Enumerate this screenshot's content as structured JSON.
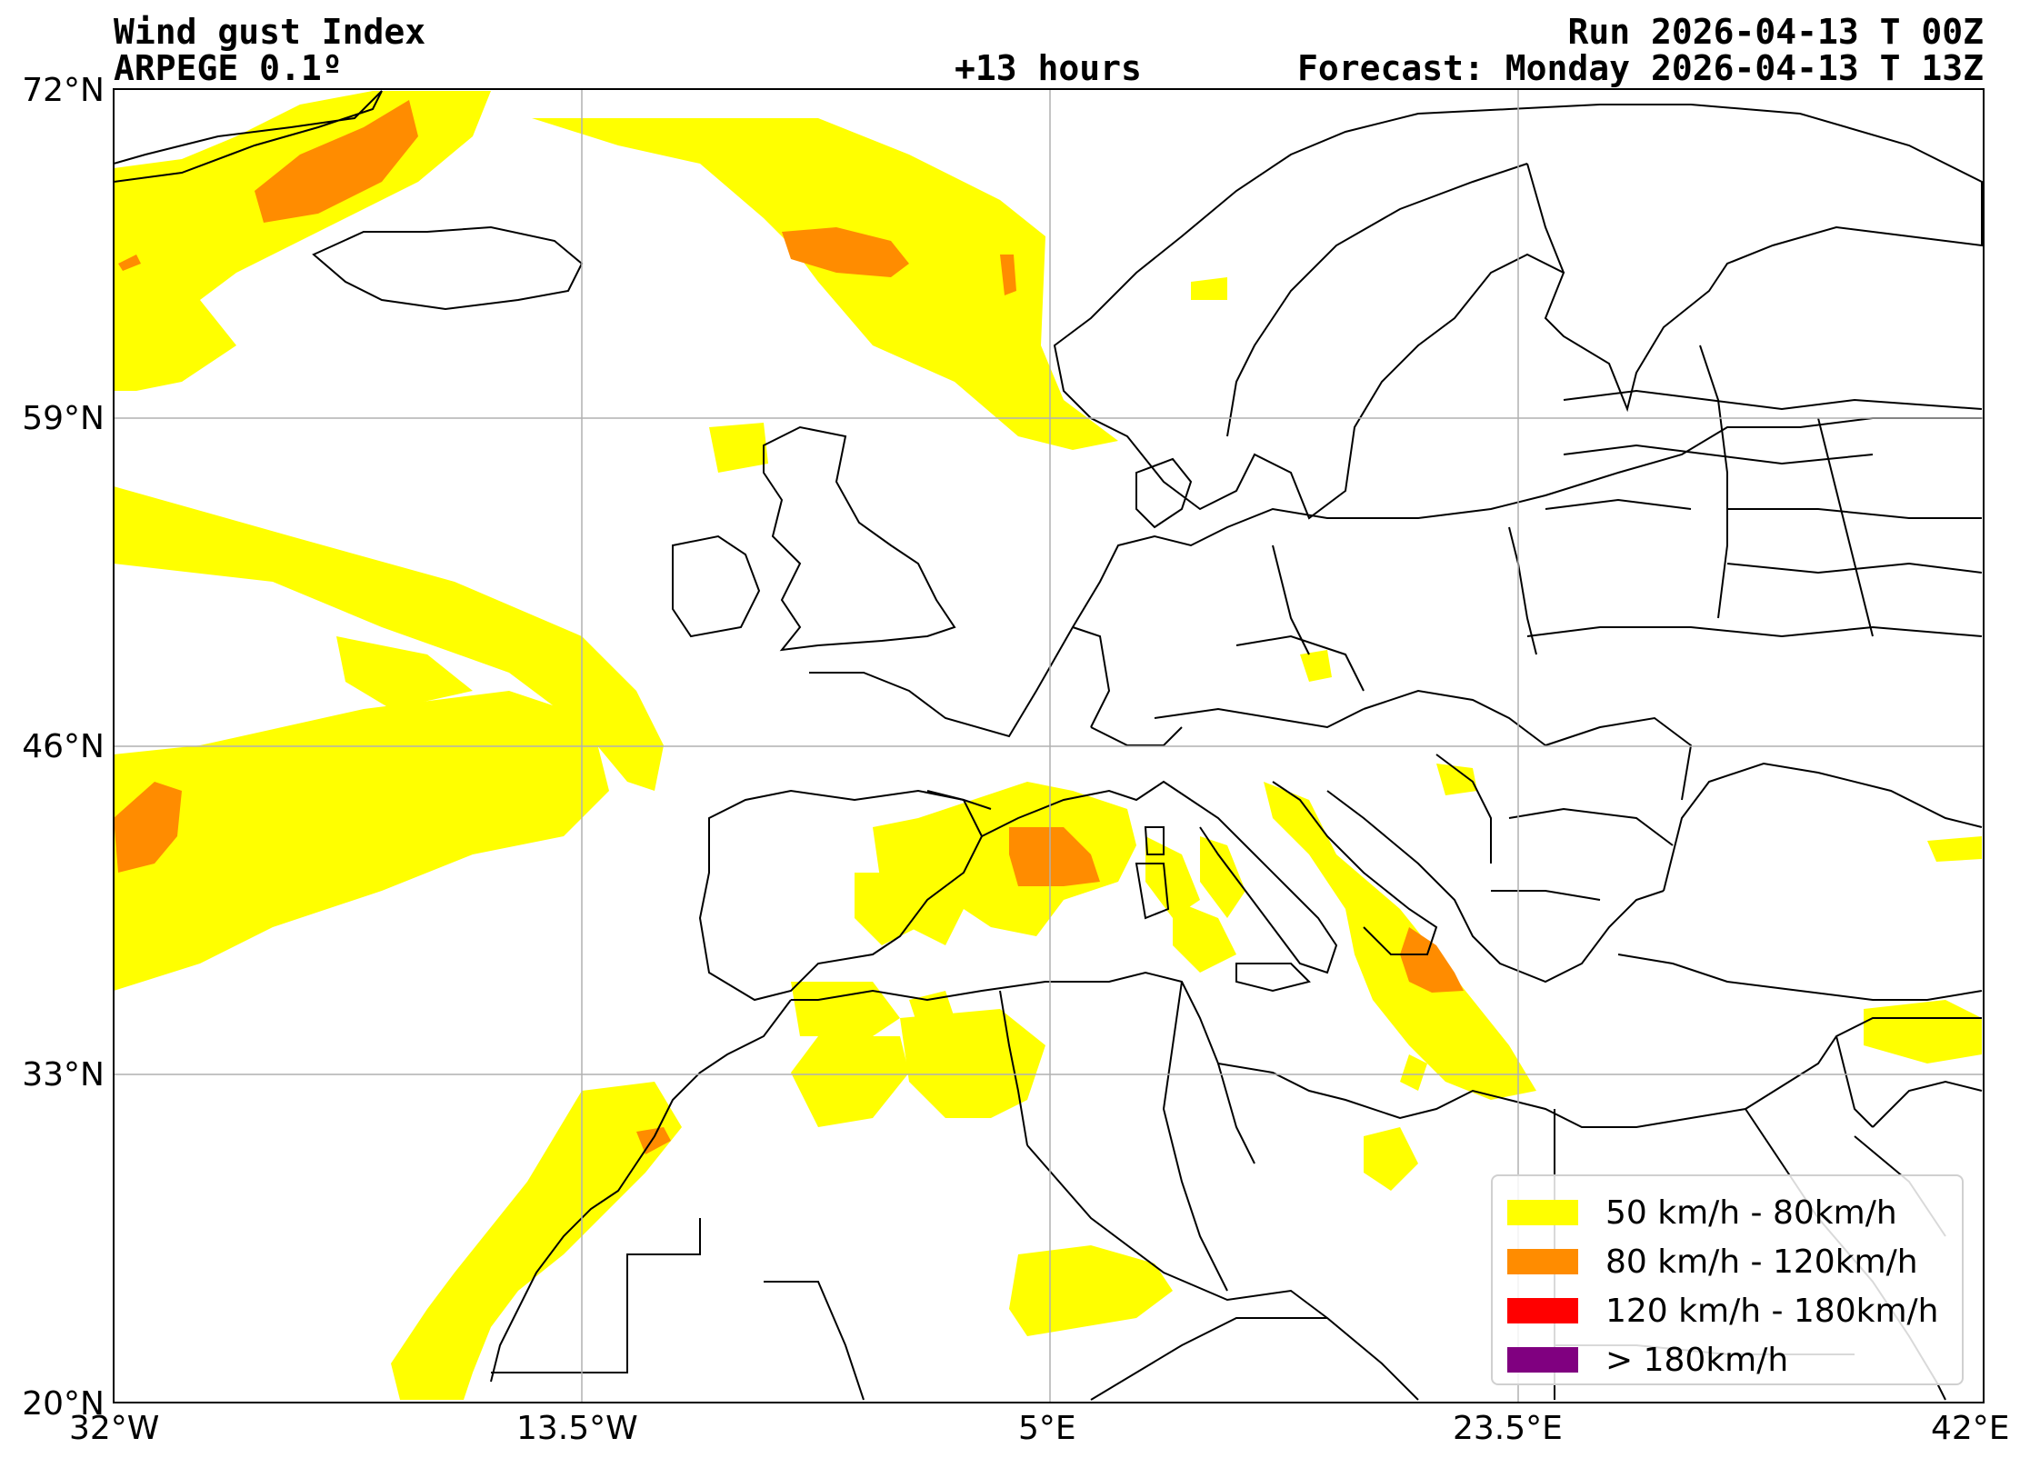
{
  "header": {
    "title": "Wind gust Index",
    "model": "ARPEGE 0.1º",
    "lead_time": "+13 hours",
    "run": "Run 2026-04-13 T 00Z",
    "forecast": "Forecast: Monday 2026-04-13 T 13Z"
  },
  "axes": {
    "lat_ticks": [
      "72°N",
      "59°N",
      "46°N",
      "33°N",
      "20°N"
    ],
    "lon_ticks": [
      "32°W",
      "13.5°W",
      "5°E",
      "23.5°E",
      "42°E"
    ]
  },
  "map": {
    "lon_range": [
      -32,
      42
    ],
    "lat_range": [
      20,
      72
    ],
    "gridlines": true
  },
  "legend": {
    "placement": "bottom-right",
    "items": [
      {
        "label": "50 km/h - 80km/h",
        "color": "#ffff00"
      },
      {
        "label": "80 km/h - 120km/h",
        "color": "#ff8c00"
      },
      {
        "label": "120 km/h - 180km/h",
        "color": "#ff0000"
      },
      {
        "label": "> 180km/h",
        "color": "#800080"
      }
    ]
  }
}
